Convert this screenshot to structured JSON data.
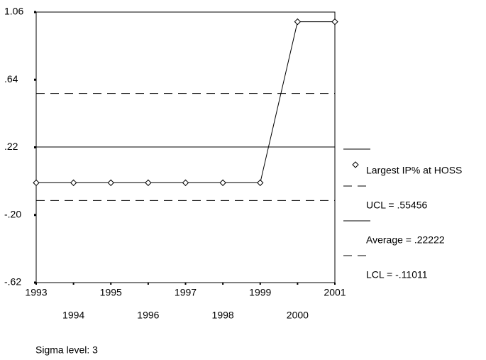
{
  "chart_data": {
    "type": "line",
    "x": [
      1993,
      1994,
      1995,
      1996,
      1997,
      1998,
      1999,
      2000,
      2001
    ],
    "xlim": [
      1993,
      2001
    ],
    "series": [
      {
        "name": "Largest IP% at HOSS",
        "color": "#000000",
        "values": [
          0,
          0,
          0,
          0,
          0,
          0,
          0,
          1,
          1
        ]
      }
    ],
    "control_lines": [
      {
        "name": "UCL = .55456",
        "value": 0.55456,
        "style": "dashed"
      },
      {
        "name": "Average = .22222",
        "value": 0.22222,
        "style": "solid"
      },
      {
        "name": "LCL = -.11011",
        "value": -0.11011,
        "style": "dashed"
      }
    ],
    "ylim": [
      -0.62,
      1.06
    ],
    "yticks": [
      {
        "value": -0.62,
        "label": "-.62"
      },
      {
        "value": -0.2,
        "label": "-.20"
      },
      {
        "value": 0.22,
        "label": ".22"
      },
      {
        "value": 0.64,
        "label": ".64"
      },
      1.06
    ],
    "footnote": "Sigma level: 3"
  }
}
